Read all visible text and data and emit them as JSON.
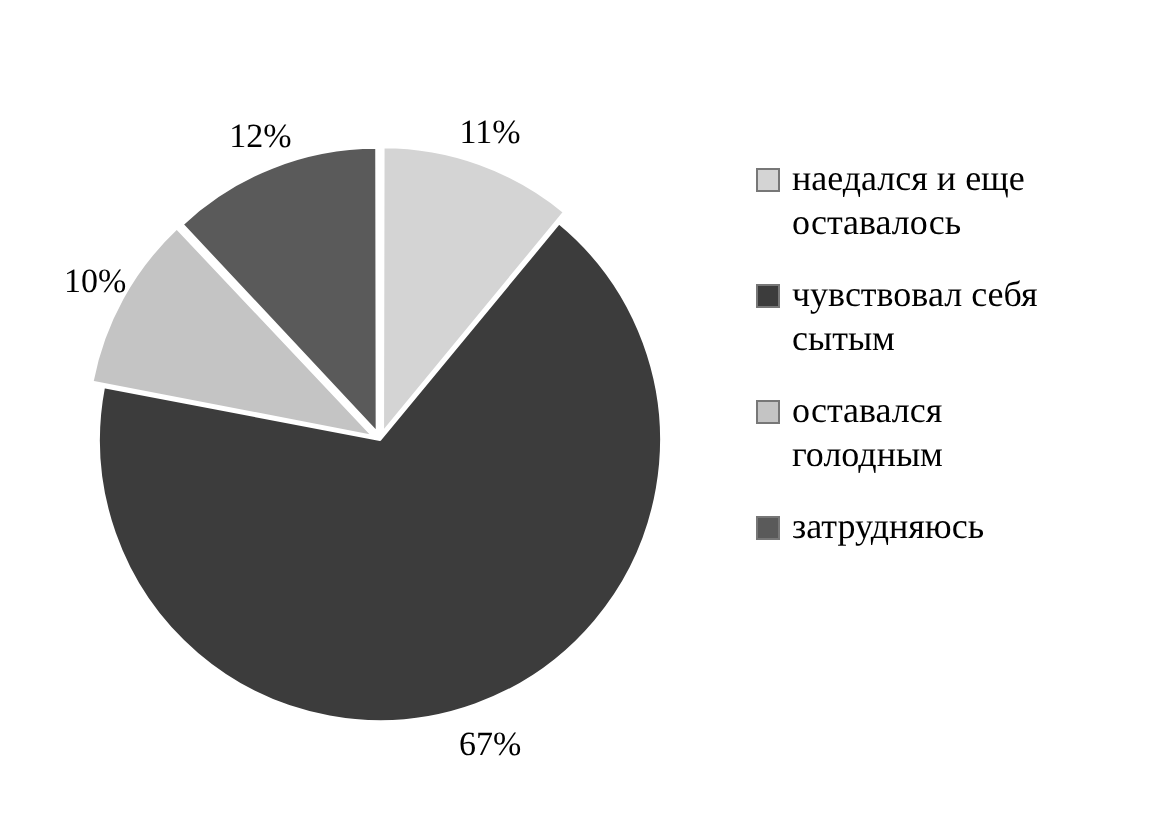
{
  "chart_data": {
    "type": "pie",
    "categories": [
      "наедался и еще оставалось",
      "чувствовал себя сытым",
      "оставался голодным",
      "затрудняюсь"
    ],
    "values": [
      11,
      67,
      10,
      12
    ],
    "colors": [
      "#d4d4d4",
      "#3c3c3c",
      "#c4c4c4",
      "#5a5a5a"
    ],
    "value_labels": [
      "11%",
      "67%",
      "10%",
      "12%"
    ],
    "legend": "right"
  }
}
